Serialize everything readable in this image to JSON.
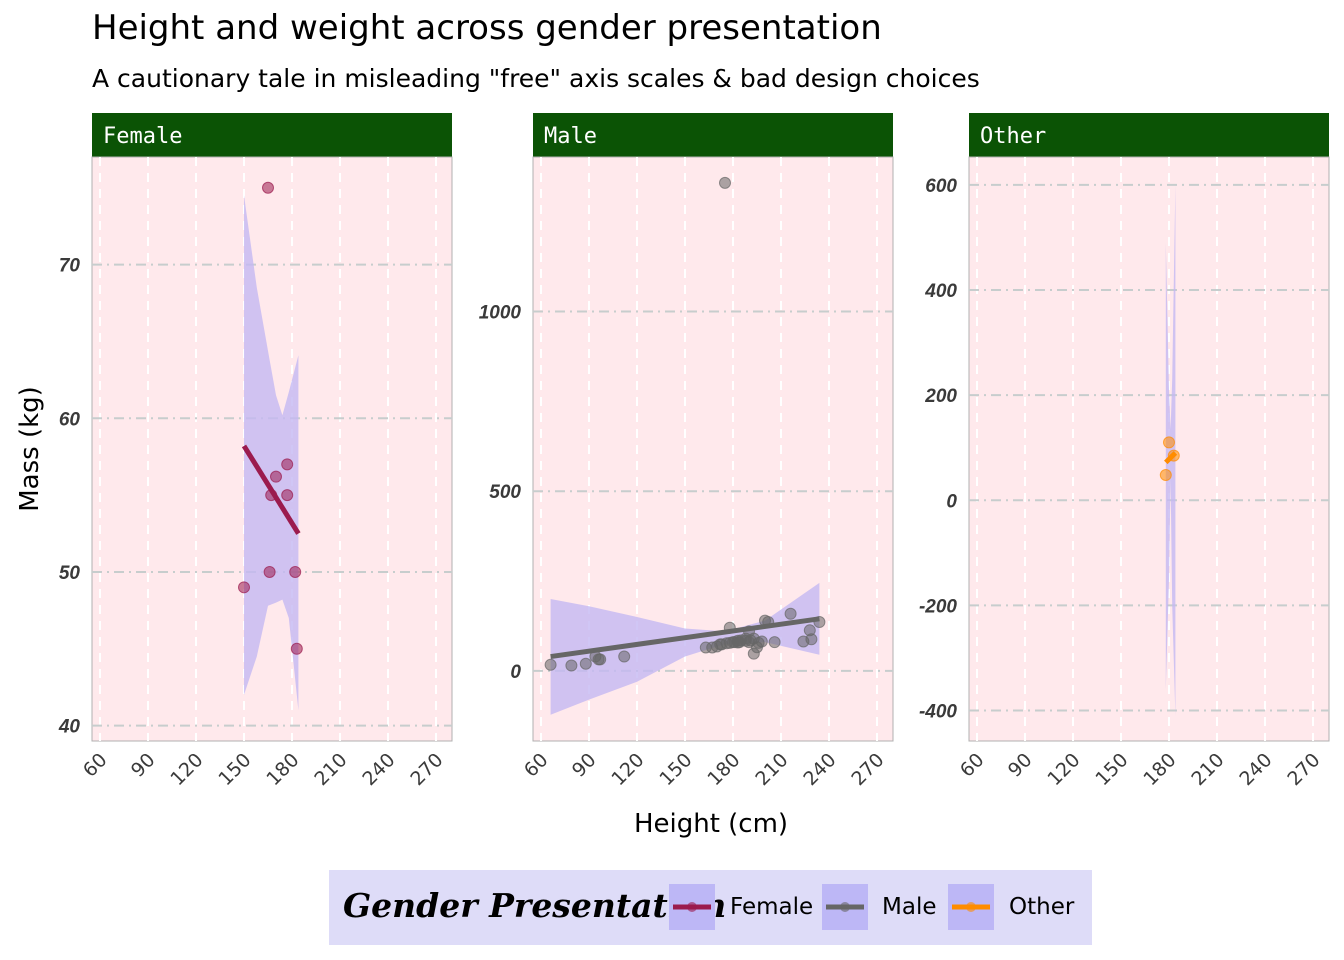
{
  "title": "Height and weight across gender presentation",
  "subtitle": "A cautionary tale in misleading \"free\" axis scales & bad design choices",
  "chart_data": {
    "type": "scatter",
    "facets": true,
    "xlabel": "Height (cm)",
    "ylabel": "Mass (kg)",
    "xlim": [
      55,
      280
    ],
    "x_ticks": [
      60,
      90,
      120,
      150,
      180,
      210,
      240,
      270
    ],
    "y_scales": "free",
    "smoother": "linear regression with confidence band",
    "colors": {
      "panel_background": "#ffe9ec",
      "strip_background": "#0b5305",
      "confidence_band": "#c4b8f2",
      "legend_background": "#dedcf8",
      "legend_key_background": "#bdb7f6"
    },
    "legend": {
      "title": "Gender Presentation",
      "position": "bottom",
      "entries": [
        {
          "label": "Female",
          "color": "#9b1b4e"
        },
        {
          "label": "Male",
          "color": "#666666"
        },
        {
          "label": "Other",
          "color": "#ff8c00"
        }
      ]
    },
    "panels": [
      {
        "name": "Female",
        "color": "#9b1b4e",
        "ylim": [
          39,
          77
        ],
        "y_ticks": [
          40,
          50,
          60,
          70
        ],
        "points": [
          [
            150,
            49
          ],
          [
            165,
            75
          ],
          [
            166,
            50
          ],
          [
            167,
            55
          ],
          [
            170,
            56.2
          ],
          [
            177,
            57
          ],
          [
            177,
            55
          ],
          [
            182,
            50
          ],
          [
            183,
            45
          ]
        ],
        "fit": {
          "x": [
            150,
            184
          ],
          "y": [
            58.2,
            52.5
          ]
        },
        "band": {
          "upper": [
            [
              150,
              74.5
            ],
            [
              158,
              68.5
            ],
            [
              166,
              63.8
            ],
            [
              170,
              61.5
            ],
            [
              174,
              60.2
            ],
            [
              178,
              61.7
            ],
            [
              184,
              64.1
            ]
          ],
          "lower": [
            [
              184,
              41
            ],
            [
              178,
              47
            ],
            [
              174,
              48.2
            ],
            [
              170,
              48
            ],
            [
              165,
              47.8
            ],
            [
              158,
              44.5
            ],
            [
              150,
              42
            ]
          ]
        }
      },
      {
        "name": "Male",
        "color": "#666666",
        "ylim": [
          -195,
          1430
        ],
        "y_ticks": [
          0,
          500,
          1000
        ],
        "points": [
          [
            66,
            17
          ],
          [
            79,
            15
          ],
          [
            88,
            20
          ],
          [
            94,
            40
          ],
          [
            96,
            32
          ],
          [
            97,
            32
          ],
          [
            112,
            40
          ],
          [
            163,
            65
          ],
          [
            167,
            65
          ],
          [
            170,
            68
          ],
          [
            172,
            74
          ],
          [
            173,
            74
          ],
          [
            175,
            1358
          ],
          [
            176,
            77
          ],
          [
            178,
            78
          ],
          [
            178,
            120
          ],
          [
            180,
            80
          ],
          [
            181,
            80
          ],
          [
            183,
            79
          ],
          [
            183,
            84
          ],
          [
            184,
            80
          ],
          [
            185,
            85
          ],
          [
            188,
            84
          ],
          [
            188,
            90
          ],
          [
            190,
            80
          ],
          [
            190,
            110
          ],
          [
            191,
            85
          ],
          [
            193,
            48
          ],
          [
            193,
            90
          ],
          [
            195,
            66
          ],
          [
            196,
            78
          ],
          [
            198,
            82
          ],
          [
            200,
            140
          ],
          [
            202,
            136
          ],
          [
            206,
            80
          ],
          [
            216,
            159
          ],
          [
            224,
            82
          ],
          [
            228,
            113
          ],
          [
            229,
            88
          ],
          [
            234,
            136
          ]
        ],
        "fit": {
          "x": [
            66,
            234
          ],
          "y": [
            40,
            145
          ]
        },
        "band": {
          "upper": [
            [
              66,
              200
            ],
            [
              90,
              180
            ],
            [
              120,
              150
            ],
            [
              150,
              118
            ],
            [
              175,
              110
            ],
            [
              200,
              140
            ],
            [
              234,
              245
            ]
          ],
          "lower": [
            [
              234,
              45
            ],
            [
              200,
              80
            ],
            [
              175,
              75
            ],
            [
              150,
              40
            ],
            [
              120,
              -30
            ],
            [
              90,
              -80
            ],
            [
              66,
              -122
            ]
          ]
        }
      },
      {
        "name": "Other",
        "color": "#ff8c00",
        "ylim": [
          -458,
          653
        ],
        "y_ticks": [
          -400,
          -200,
          0,
          200,
          400,
          600
        ],
        "points": [
          [
            178,
            48
          ],
          [
            180,
            110
          ],
          [
            183,
            85
          ]
        ],
        "fit": {
          "x": [
            178,
            184
          ],
          "y": [
            72,
            90
          ]
        },
        "band": {
          "upper": [
            [
              178,
              490
            ],
            [
              180,
              210
            ],
            [
              181,
              135
            ],
            [
              182,
              230
            ],
            [
              184,
              600
            ]
          ],
          "lower": [
            [
              184,
              -410
            ],
            [
              182,
              -200
            ],
            [
              181,
              40
            ],
            [
              180,
              -150
            ],
            [
              178,
              -360
            ]
          ]
        }
      }
    ]
  }
}
